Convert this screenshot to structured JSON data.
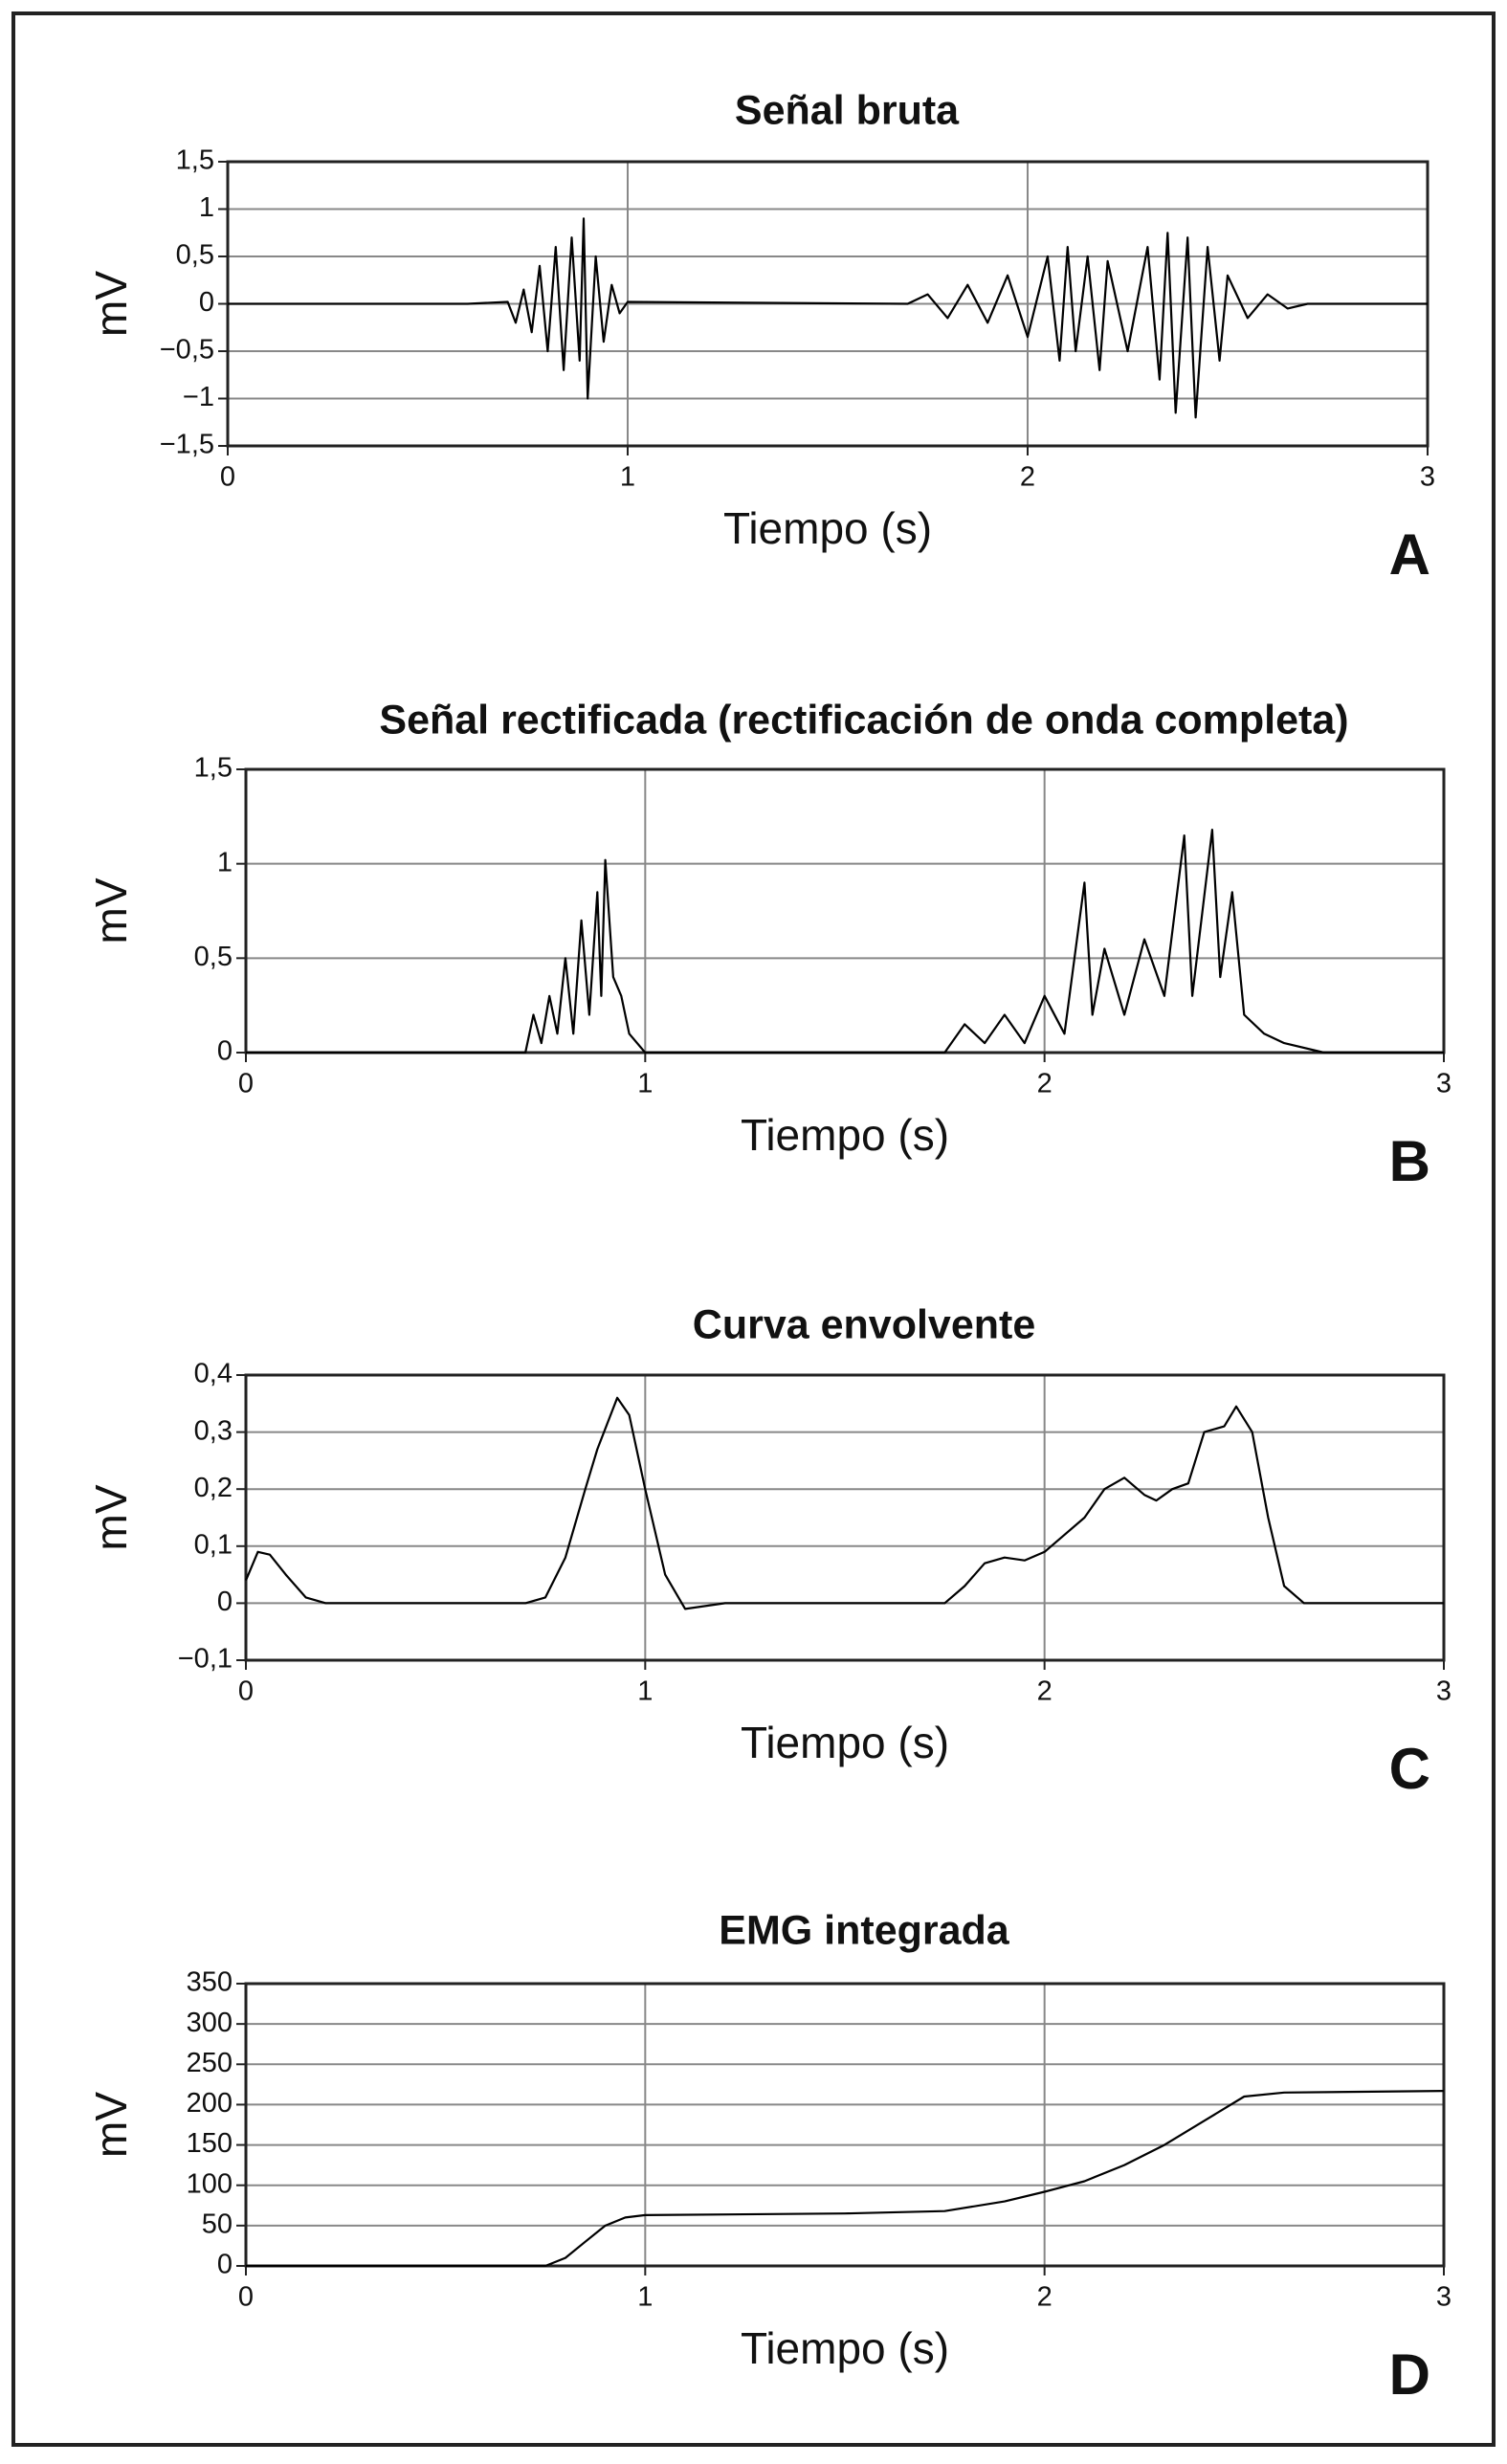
{
  "chart_data": [
    {
      "type": "line",
      "title": "Señal bruta",
      "xlabel": "Tiempo (s)",
      "ylabel": "mV",
      "panel_label": "A",
      "color": "#000000",
      "grid": true,
      "xlim": [
        0,
        3
      ],
      "xticks": [
        0,
        1,
        2,
        3
      ],
      "ylim": [
        -1.5,
        1.5
      ],
      "yticks": [
        {
          "value": 1.5,
          "label": "1,5"
        },
        1,
        {
          "value": 0.5,
          "label": "0,5"
        },
        0,
        {
          "value": -0.5,
          "label": "−0,5"
        },
        {
          "value": -1,
          "label": "−1"
        },
        {
          "value": -1.5,
          "label": "−1,5"
        }
      ],
      "x": [
        0,
        0.6,
        0.7,
        0.72,
        0.74,
        0.76,
        0.78,
        0.8,
        0.82,
        0.84,
        0.86,
        0.88,
        0.89,
        0.9,
        0.92,
        0.94,
        0.96,
        0.98,
        1.0,
        1.7,
        1.75,
        1.8,
        1.85,
        1.9,
        1.95,
        2.0,
        2.05,
        2.08,
        2.1,
        2.12,
        2.15,
        2.18,
        2.2,
        2.25,
        2.3,
        2.33,
        2.35,
        2.37,
        2.4,
        2.42,
        2.45,
        2.48,
        2.5,
        2.55,
        2.6,
        2.65,
        2.7,
        3
      ],
      "values": [
        0,
        0,
        0.02,
        -0.2,
        0.15,
        -0.3,
        0.4,
        -0.5,
        0.6,
        -0.7,
        0.7,
        -0.6,
        0.9,
        -1.0,
        0.5,
        -0.4,
        0.2,
        -0.1,
        0.02,
        0,
        0.1,
        -0.15,
        0.2,
        -0.2,
        0.3,
        -0.35,
        0.5,
        -0.6,
        0.6,
        -0.5,
        0.5,
        -0.7,
        0.45,
        -0.5,
        0.6,
        -0.8,
        0.75,
        -1.15,
        0.7,
        -1.2,
        0.6,
        -0.6,
        0.3,
        -0.15,
        0.1,
        -0.05,
        0,
        0
      ]
    },
    {
      "type": "line",
      "title": "Señal rectificada (rectificación de onda completa)",
      "xlabel": "Tiempo (s)",
      "ylabel": "mV",
      "panel_label": "B",
      "color": "#000000",
      "grid": true,
      "xlim": [
        0,
        3
      ],
      "xticks": [
        0,
        1,
        2,
        3
      ],
      "ylim": [
        0,
        1.5
      ],
      "yticks": [
        {
          "value": 1.5,
          "label": "1,5"
        },
        1,
        {
          "value": 0.5,
          "label": "0,5"
        },
        0
      ],
      "x": [
        0,
        0.7,
        0.72,
        0.74,
        0.76,
        0.78,
        0.8,
        0.82,
        0.84,
        0.86,
        0.88,
        0.89,
        0.9,
        0.92,
        0.94,
        0.96,
        1.0,
        1.75,
        1.8,
        1.85,
        1.9,
        1.95,
        2.0,
        2.05,
        2.1,
        2.12,
        2.15,
        2.2,
        2.25,
        2.3,
        2.35,
        2.37,
        2.42,
        2.44,
        2.47,
        2.5,
        2.55,
        2.6,
        2.7,
        3
      ],
      "values": [
        0,
        0,
        0.2,
        0.05,
        0.3,
        0.1,
        0.5,
        0.1,
        0.7,
        0.2,
        0.85,
        0.3,
        1.02,
        0.4,
        0.3,
        0.1,
        0,
        0,
        0.15,
        0.05,
        0.2,
        0.05,
        0.3,
        0.1,
        0.9,
        0.2,
        0.55,
        0.2,
        0.6,
        0.3,
        1.15,
        0.3,
        1.18,
        0.4,
        0.85,
        0.2,
        0.1,
        0.05,
        0,
        0
      ]
    },
    {
      "type": "line",
      "title": "Curva envolvente",
      "xlabel": "Tiempo (s)",
      "ylabel": "mV",
      "panel_label": "C",
      "color": "#000000",
      "grid": true,
      "xlim": [
        0,
        3
      ],
      "xticks": [
        0,
        1,
        2,
        3
      ],
      "ylim": [
        -0.1,
        0.4
      ],
      "yticks": [
        {
          "value": 0.4,
          "label": "0,4"
        },
        {
          "value": 0.3,
          "label": "0,3"
        },
        {
          "value": 0.2,
          "label": "0,2"
        },
        {
          "value": 0.1,
          "label": "0,1"
        },
        0,
        {
          "value": -0.1,
          "label": "−0,1"
        }
      ],
      "x": [
        0,
        0.03,
        0.06,
        0.1,
        0.15,
        0.2,
        0.7,
        0.75,
        0.8,
        0.85,
        0.88,
        0.93,
        0.96,
        1.0,
        1.05,
        1.1,
        1.2,
        1.75,
        1.8,
        1.85,
        1.9,
        1.95,
        2.0,
        2.05,
        2.1,
        2.15,
        2.2,
        2.25,
        2.28,
        2.32,
        2.36,
        2.4,
        2.45,
        2.48,
        2.52,
        2.56,
        2.6,
        2.65,
        3
      ],
      "values": [
        0.04,
        0.09,
        0.085,
        0.05,
        0.01,
        0,
        0,
        0.01,
        0.08,
        0.2,
        0.27,
        0.36,
        0.33,
        0.2,
        0.05,
        -0.01,
        0,
        0,
        0.03,
        0.07,
        0.08,
        0.075,
        0.09,
        0.12,
        0.15,
        0.2,
        0.22,
        0.19,
        0.18,
        0.2,
        0.21,
        0.3,
        0.31,
        0.345,
        0.3,
        0.15,
        0.03,
        0,
        0
      ]
    },
    {
      "type": "line",
      "title": "EMG integrada",
      "xlabel": "Tiempo (s)",
      "ylabel": "mV",
      "panel_label": "D",
      "color": "#000000",
      "grid": true,
      "xlim": [
        0,
        3
      ],
      "xticks": [
        0,
        1,
        2,
        3
      ],
      "ylim": [
        0,
        350
      ],
      "yticks": [
        350,
        300,
        250,
        200,
        150,
        100,
        50,
        0
      ],
      "x": [
        0,
        0.75,
        0.8,
        0.85,
        0.9,
        0.95,
        1.0,
        1.5,
        1.75,
        1.9,
        2.0,
        2.1,
        2.2,
        2.3,
        2.4,
        2.5,
        2.6,
        3
      ],
      "values": [
        0,
        0,
        10,
        30,
        50,
        60,
        63,
        65,
        68,
        80,
        92,
        105,
        125,
        150,
        180,
        210,
        215,
        217
      ]
    }
  ]
}
